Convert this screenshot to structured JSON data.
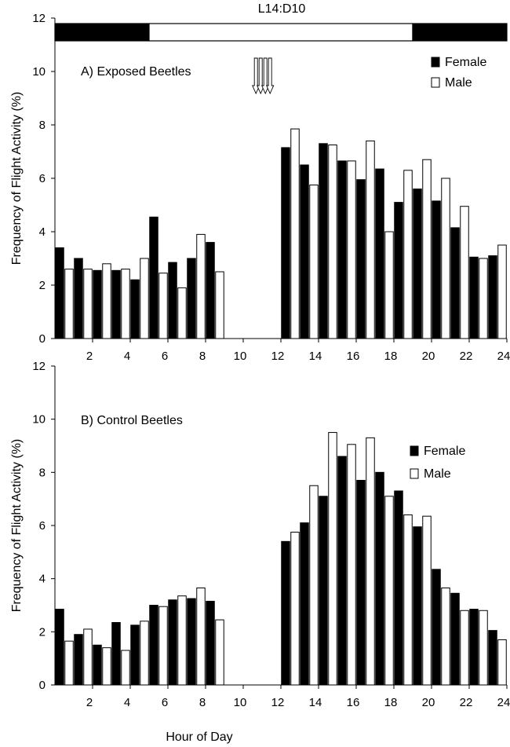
{
  "photoperiod": {
    "label": "L14:D10",
    "segments": [
      {
        "phase": "dark",
        "from_hour": 0,
        "to_hour": 5
      },
      {
        "phase": "light",
        "from_hour": 5,
        "to_hour": 19
      },
      {
        "phase": "dark",
        "from_hour": 19,
        "to_hour": 24
      }
    ]
  },
  "colors": {
    "female": "#000000",
    "male": "#ffffff",
    "outline": "#000000"
  },
  "shared_xlabel": "Hour of Day",
  "chart_data": [
    {
      "type": "bar",
      "title": "A) Exposed Beetles",
      "ylabel": "Frequency of Flight Activity (%)",
      "xlabel": "Hour of Day",
      "ylim": [
        0,
        12
      ],
      "yticks": [
        0,
        2,
        4,
        6,
        8,
        10,
        12
      ],
      "xlim": [
        0,
        24
      ],
      "xticks": [
        2,
        4,
        6,
        8,
        10,
        12,
        14,
        16,
        18,
        20,
        22,
        24
      ],
      "legend": "top-right",
      "exposure_marker": {
        "type": "arrows",
        "count": 4,
        "at_hour": 10.8
      },
      "series": [
        {
          "name": "Female",
          "fill": "#000000",
          "x": [
            1,
            2,
            3,
            4,
            5,
            6,
            7,
            8,
            9,
            13,
            14,
            15,
            16,
            17,
            18,
            19,
            20,
            21,
            22,
            23,
            24
          ],
          "values": [
            3.4,
            3.0,
            2.55,
            2.55,
            2.2,
            4.55,
            2.85,
            3.0,
            3.6,
            7.15,
            6.5,
            7.3,
            6.65,
            5.95,
            6.35,
            5.1,
            5.6,
            5.15,
            4.15,
            3.05,
            3.1
          ]
        },
        {
          "name": "Male",
          "fill": "#ffffff",
          "x": [
            1,
            2,
            3,
            4,
            5,
            6,
            7,
            8,
            9,
            13,
            14,
            15,
            16,
            17,
            18,
            19,
            20,
            21,
            22,
            23,
            24
          ],
          "values": [
            2.6,
            2.6,
            2.8,
            2.6,
            3.0,
            2.45,
            1.9,
            3.9,
            2.5,
            7.85,
            5.75,
            7.25,
            6.65,
            7.4,
            4.0,
            6.3,
            6.7,
            6.0,
            4.95,
            3.0,
            3.5
          ]
        }
      ]
    },
    {
      "type": "bar",
      "title": "B) Control Beetles",
      "ylabel": "Frequency of Flight Activity (%)",
      "xlabel": "Hour of Day",
      "ylim": [
        0,
        12
      ],
      "yticks": [
        0,
        2,
        4,
        6,
        8,
        10,
        12
      ],
      "xlim": [
        0,
        24
      ],
      "xticks": [
        2,
        4,
        6,
        8,
        10,
        12,
        14,
        16,
        18,
        20,
        22,
        24
      ],
      "legend": "right",
      "series": [
        {
          "name": "Female",
          "fill": "#000000",
          "x": [
            1,
            2,
            3,
            4,
            5,
            6,
            7,
            8,
            9,
            13,
            14,
            15,
            16,
            17,
            18,
            19,
            20,
            21,
            22,
            23,
            24
          ],
          "values": [
            2.85,
            1.9,
            1.5,
            2.35,
            2.25,
            3.0,
            3.2,
            3.25,
            3.15,
            5.4,
            6.1,
            7.1,
            8.6,
            7.7,
            8.0,
            7.3,
            5.95,
            4.35,
            3.45,
            2.85,
            2.05
          ]
        },
        {
          "name": "Male",
          "fill": "#ffffff",
          "x": [
            1,
            2,
            3,
            4,
            5,
            6,
            7,
            8,
            9,
            13,
            14,
            15,
            16,
            17,
            18,
            19,
            20,
            21,
            22,
            23,
            24
          ],
          "values": [
            1.65,
            2.1,
            1.4,
            1.3,
            2.4,
            2.95,
            3.35,
            3.65,
            2.45,
            5.75,
            7.5,
            9.5,
            9.05,
            9.3,
            7.1,
            6.4,
            6.35,
            3.65,
            2.8,
            2.8,
            1.7
          ]
        }
      ]
    }
  ]
}
